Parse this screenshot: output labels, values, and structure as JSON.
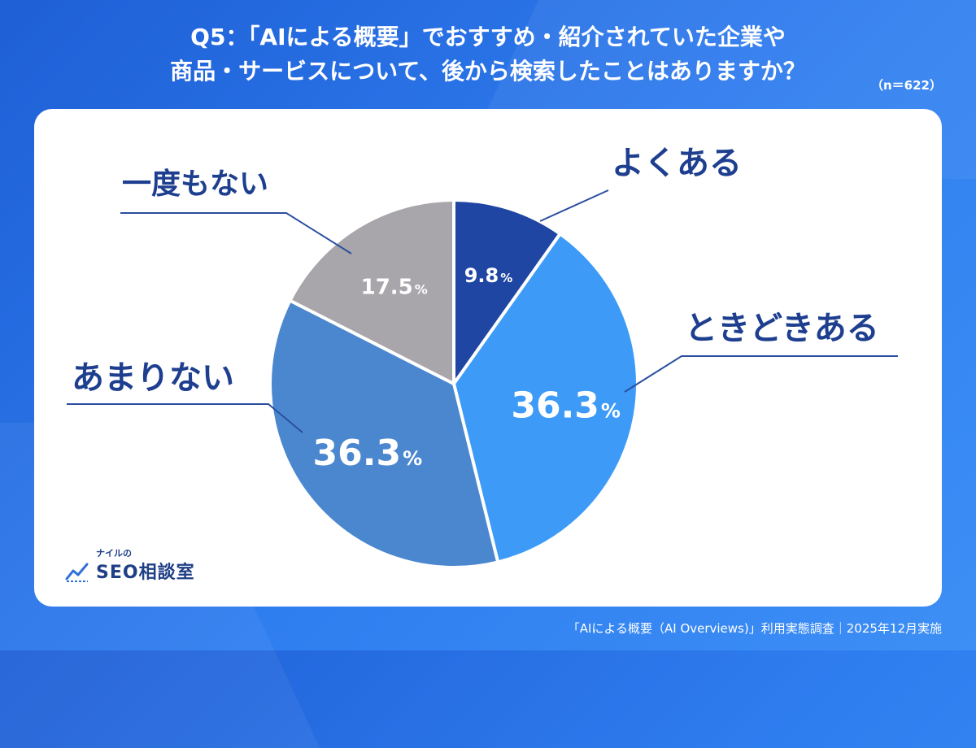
{
  "title": {
    "line1": "Q5：「AIによる概要」でおすすめ・紹介されていた企業や",
    "line2": "商品・サービスについて、後から検索したことはありますか？",
    "sample_size": "（n＝622）"
  },
  "chart_data": {
    "type": "pie",
    "slices": [
      {
        "label": "よくある",
        "value": 9.8,
        "display": "9.8",
        "unit": "%",
        "color": "#1f46a3"
      },
      {
        "label": "ときどきある",
        "value": 36.3,
        "display": "36.3",
        "unit": "%",
        "color": "#3d9bf7"
      },
      {
        "label": "あまりない",
        "value": 36.3,
        "display": "36.3",
        "unit": "%",
        "color": "#4b87cf"
      },
      {
        "label": "一度もない",
        "value": 17.5,
        "display": "17.5",
        "unit": "%",
        "color": "#a8a6ab"
      }
    ]
  },
  "logo": {
    "small_text": "ナイルの",
    "main_text": "SEO相談室"
  },
  "footer": {
    "source": "「AIによる概要（AI Overviews)」利用実態調査｜2025年12月実施"
  },
  "colors": {
    "background": "#2f7ef0",
    "label_text": "#1e3f8f",
    "leader_line": "#2a4f9e"
  }
}
